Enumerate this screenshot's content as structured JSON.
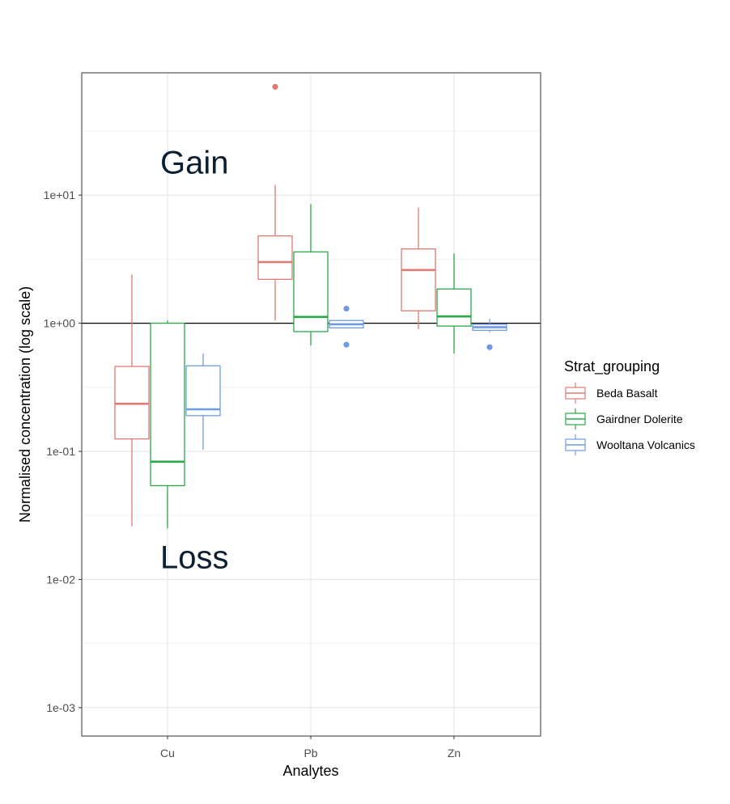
{
  "chart_data": {
    "type": "boxplot",
    "y_scale": "log10",
    "ylabel": "Normalised concentration (log scale)",
    "xlabel": "Analytes",
    "categories": [
      "Cu",
      "Pb",
      "Zn"
    ],
    "ylim": [
      0.0006,
      90
    ],
    "y_ticks": [
      {
        "value": 0.001,
        "label": "1e-03"
      },
      {
        "value": 0.01,
        "label": "1e-02"
      },
      {
        "value": 0.1,
        "label": "1e-01"
      },
      {
        "value": 1,
        "label": "1e+00"
      },
      {
        "value": 10,
        "label": "1e+01"
      }
    ],
    "reference_line": 1,
    "grid": true,
    "legend": {
      "title": "Strat_grouping",
      "placement": "right"
    },
    "series": [
      {
        "name": "Beda Basalt",
        "color": "#e07b74",
        "boxes": [
          {
            "category": "Cu",
            "whisker_low": 0.026,
            "q1": 0.125,
            "median": 0.235,
            "q3": 0.46,
            "whisker_high": 2.4,
            "outliers": []
          },
          {
            "category": "Pb",
            "whisker_low": 1.05,
            "q1": 2.2,
            "median": 3.0,
            "q3": 4.8,
            "whisker_high": 12.0,
            "outliers": [
              70
            ]
          },
          {
            "category": "Zn",
            "whisker_low": 0.9,
            "q1": 1.25,
            "median": 2.6,
            "q3": 3.8,
            "whisker_high": 8.0,
            "outliers": []
          }
        ]
      },
      {
        "name": "Gairdner Dolerite",
        "color": "#2aa84a",
        "boxes": [
          {
            "category": "Cu",
            "whisker_low": 0.025,
            "q1": 0.054,
            "median": 0.083,
            "q3": 1.0,
            "whisker_high": 1.05,
            "outliers": []
          },
          {
            "category": "Pb",
            "whisker_low": 0.67,
            "q1": 0.86,
            "median": 1.12,
            "q3": 3.6,
            "whisker_high": 8.5,
            "outliers": []
          },
          {
            "category": "Zn",
            "whisker_low": 0.58,
            "q1": 0.95,
            "median": 1.13,
            "q3": 1.85,
            "whisker_high": 3.5,
            "outliers": []
          }
        ]
      },
      {
        "name": "Wooltana Volcanics",
        "color": "#6f9be3",
        "boxes": [
          {
            "category": "Cu",
            "whisker_low": 0.103,
            "q1": 0.19,
            "median": 0.213,
            "q3": 0.465,
            "whisker_high": 0.58,
            "outliers": []
          },
          {
            "category": "Pb",
            "whisker_low": 0.92,
            "q1": 0.92,
            "median": 0.98,
            "q3": 1.05,
            "whisker_high": 1.05,
            "outliers": [
              1.3,
              0.68
            ]
          },
          {
            "category": "Zn",
            "whisker_low": 0.85,
            "q1": 0.88,
            "median": 0.93,
            "q3": 0.98,
            "whisker_high": 1.08,
            "outliers": [
              0.65
            ]
          }
        ]
      }
    ],
    "annotations": [
      {
        "text": "Gain",
        "x_category": "Cu",
        "y": 18
      },
      {
        "text": "Loss",
        "x_category": "Cu",
        "y": 0.015
      }
    ]
  }
}
